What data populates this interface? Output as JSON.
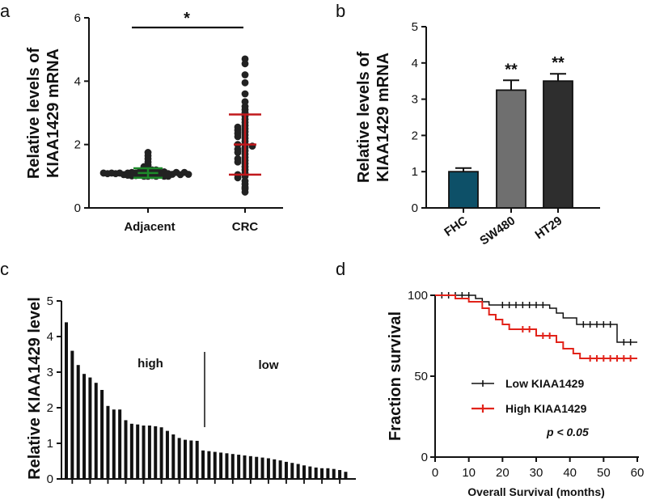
{
  "colors": {
    "axis": "#111111",
    "dot": "#222222",
    "adjacent_err": "#1d8a2a",
    "crc_err": "#c0181c",
    "bar_fhc": "#0d5068",
    "bar_sw480": "#6f6f6f",
    "bar_ht29": "#2e2e2e",
    "km_low": "#111111",
    "km_high": "#e2231a",
    "bar_c": "#111111"
  },
  "chart_data": [
    {
      "panel": "a",
      "type": "scatter",
      "ylabel_line1": "Relative levels of",
      "ylabel_line2": "KIAA1429 mRNA",
      "categories": [
        "Adjacent",
        "CRC"
      ],
      "ylim": [
        0,
        6
      ],
      "yticks": [
        "0",
        "2",
        "4",
        "6"
      ],
      "significance": "*",
      "groups": [
        {
          "name": "Adjacent",
          "mean": 1.1,
          "sd": 0.15,
          "values": [
            1.0,
            1.0,
            1.02,
            1.04,
            1.05,
            1.06,
            1.08,
            1.1,
            1.1,
            1.1,
            1.12,
            1.12,
            1.14,
            1.15,
            1.1,
            1.08,
            1.05,
            1.0,
            1.02,
            1.06,
            1.1,
            1.15,
            1.12,
            1.08,
            1.04,
            1.01,
            1.2,
            1.25,
            1.3,
            1.35,
            1.45,
            1.55,
            1.65,
            1.75,
            1.0,
            1.05,
            1.1,
            1.12,
            1.08,
            1.03,
            1.0,
            1.06,
            1.1,
            1.15,
            1.2
          ]
        },
        {
          "name": "CRC",
          "mean": 2.0,
          "sd": 0.95,
          "values": [
            4.7,
            4.55,
            4.2,
            3.95,
            3.6,
            3.35,
            3.2,
            3.1,
            3.0,
            2.9,
            2.8,
            2.7,
            2.6,
            2.5,
            2.45,
            2.4,
            2.35,
            2.3,
            2.25,
            2.2,
            2.1,
            2.0,
            2.0,
            1.95,
            1.9,
            1.85,
            1.8,
            1.75,
            1.7,
            1.6,
            1.55,
            1.5,
            1.45,
            1.4,
            1.3,
            1.2,
            1.1,
            1.0,
            0.95,
            0.85,
            0.75,
            0.65,
            0.6,
            0.5,
            1.05,
            2.55
          ]
        }
      ]
    },
    {
      "panel": "b",
      "type": "bar",
      "ylabel_line1": "Relative levels of",
      "ylabel_line2": "KIAA1429 mRNA",
      "categories": [
        "FHC",
        "SW480",
        "HT29"
      ],
      "values": [
        1.0,
        3.25,
        3.5
      ],
      "errors": [
        0.1,
        0.27,
        0.2
      ],
      "significance": [
        "",
        "**",
        "**"
      ],
      "ylim": [
        0,
        5
      ],
      "yticks": [
        "0",
        "1",
        "2",
        "3",
        "4",
        "5"
      ]
    },
    {
      "panel": "c",
      "type": "bar",
      "ylabel": "Relative KIAA1429 level",
      "ylim": [
        0,
        5
      ],
      "yticks": [
        "0",
        "1",
        "2",
        "3",
        "4",
        "5"
      ],
      "annotations": [
        "high",
        "low"
      ],
      "split_after_index": 21,
      "values": [
        4.4,
        3.6,
        3.2,
        2.95,
        2.85,
        2.7,
        2.5,
        2.05,
        1.95,
        1.95,
        1.65,
        1.55,
        1.53,
        1.5,
        1.5,
        1.48,
        1.45,
        1.35,
        1.25,
        1.15,
        1.1,
        1.08,
        1.07,
        0.8,
        0.78,
        0.76,
        0.74,
        0.72,
        0.7,
        0.68,
        0.66,
        0.64,
        0.62,
        0.6,
        0.58,
        0.55,
        0.52,
        0.48,
        0.45,
        0.42,
        0.38,
        0.35,
        0.32,
        0.3,
        0.3,
        0.28,
        0.25,
        0.2
      ]
    },
    {
      "panel": "d",
      "type": "line",
      "xlabel": "Overall Survival (months)",
      "ylabel": "Fraction survival",
      "xlim": [
        0,
        60
      ],
      "ylim": [
        0,
        100
      ],
      "xticks": [
        "0",
        "10",
        "20",
        "30",
        "40",
        "50",
        "60"
      ],
      "yticks": [
        "0",
        "50",
        "100"
      ],
      "pvalue": "p < 0.05",
      "series": [
        {
          "name": "Low KIAA1429",
          "steps": [
            [
              0,
              100
            ],
            [
              12,
              98
            ],
            [
              14,
              96
            ],
            [
              16,
              94
            ],
            [
              34,
              92
            ],
            [
              36,
              89
            ],
            [
              38,
              86
            ],
            [
              42,
              82
            ],
            [
              54,
              71
            ],
            [
              60,
              71
            ]
          ],
          "censors": [
            [
              2,
              100
            ],
            [
              4,
              100
            ],
            [
              6,
              100
            ],
            [
              8,
              100
            ],
            [
              10,
              100
            ],
            [
              20,
              94
            ],
            [
              22,
              94
            ],
            [
              24,
              94
            ],
            [
              26,
              94
            ],
            [
              28,
              94
            ],
            [
              30,
              94
            ],
            [
              32,
              94
            ],
            [
              44,
              82
            ],
            [
              46,
              82
            ],
            [
              48,
              82
            ],
            [
              50,
              82
            ],
            [
              52,
              82
            ],
            [
              56,
              71
            ],
            [
              58,
              71
            ]
          ]
        },
        {
          "name": "High KIAA1429",
          "steps": [
            [
              0,
              100
            ],
            [
              6,
              98
            ],
            [
              10,
              96
            ],
            [
              14,
              92
            ],
            [
              16,
              88
            ],
            [
              18,
              85
            ],
            [
              20,
              82
            ],
            [
              22,
              79
            ],
            [
              30,
              75
            ],
            [
              36,
              71
            ],
            [
              38,
              67
            ],
            [
              41,
              64
            ],
            [
              43,
              61
            ],
            [
              60,
              61
            ]
          ],
          "censors": [
            [
              26,
              79
            ],
            [
              28,
              79
            ],
            [
              32,
              75
            ],
            [
              34,
              75
            ],
            [
              46,
              61
            ],
            [
              48,
              61
            ],
            [
              50,
              61
            ],
            [
              52,
              61
            ],
            [
              54,
              61
            ],
            [
              56,
              61
            ],
            [
              58,
              61
            ]
          ]
        }
      ]
    }
  ]
}
